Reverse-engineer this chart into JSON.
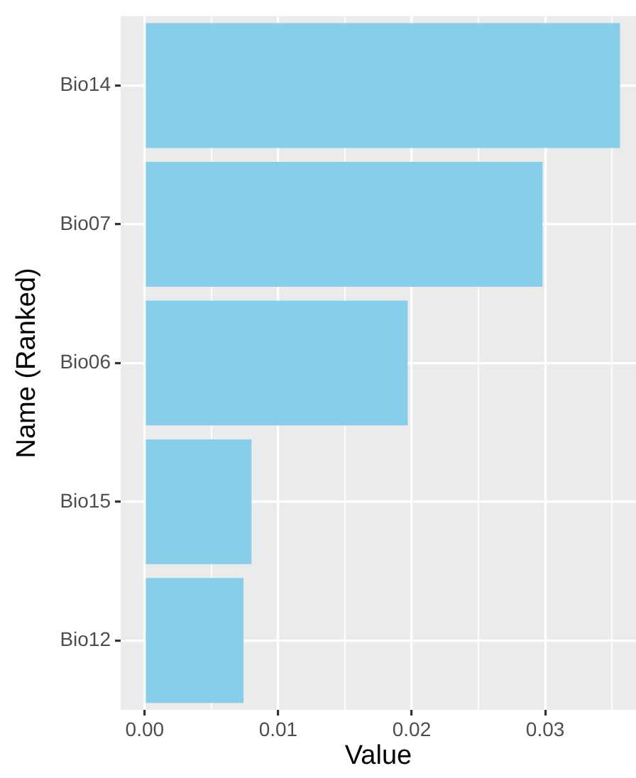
{
  "chart_data": {
    "type": "bar",
    "orientation": "horizontal",
    "xlabel": "Value",
    "ylabel": "Name (Ranked)",
    "categories": [
      "Bio14",
      "Bio07",
      "Bio06",
      "Bio15",
      "Bio12"
    ],
    "values": [
      0.0356,
      0.0298,
      0.0197,
      0.008,
      0.0074
    ],
    "color": "#87ceeb",
    "xlim": [
      -0.0018,
      0.0368
    ],
    "xticks": [
      {
        "value": 0,
        "label": "0.00"
      },
      {
        "value": 0.005,
        "label": null
      },
      {
        "value": 0.01,
        "label": "0.01"
      },
      {
        "value": 0.015,
        "label": null
      },
      {
        "value": 0.02,
        "label": "0.02"
      },
      {
        "value": 0.025,
        "label": null
      },
      {
        "value": 0.03,
        "label": "0.03"
      },
      {
        "value": 0.035,
        "label": null
      }
    ],
    "grid": true,
    "legend": false
  }
}
